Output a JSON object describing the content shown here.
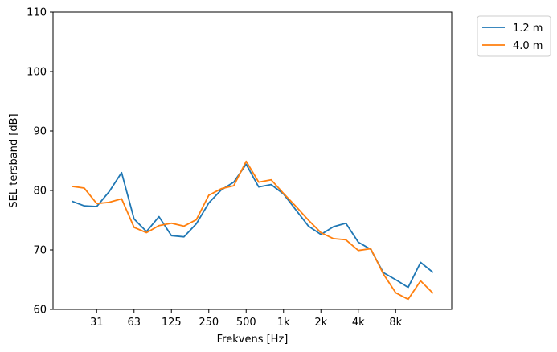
{
  "chart_data": {
    "type": "line",
    "title": "",
    "xlabel": "Frekvens [Hz]",
    "ylabel": "SEL tersband [dB]",
    "ylim": [
      60,
      110
    ],
    "yticks": [
      60,
      70,
      80,
      90,
      100,
      110
    ],
    "xticks": [
      {
        "index": 2,
        "label": "31"
      },
      {
        "index": 5,
        "label": "63"
      },
      {
        "index": 8,
        "label": "125"
      },
      {
        "index": 11,
        "label": "250"
      },
      {
        "index": 14,
        "label": "500"
      },
      {
        "index": 17,
        "label": "1k"
      },
      {
        "index": 20,
        "label": "2k"
      },
      {
        "index": 23,
        "label": "4k"
      },
      {
        "index": 26,
        "label": "8k"
      }
    ],
    "x_index_range": [
      -1.5,
      30.5
    ],
    "grid": false,
    "legend_position": "outside-top-right",
    "series": [
      {
        "name": "1.2 m",
        "color": "#1f77b4",
        "values": [
          78.2,
          77.4,
          77.3,
          79.8,
          83.0,
          75.2,
          73.1,
          75.6,
          72.4,
          72.2,
          74.4,
          77.9,
          80.1,
          81.4,
          84.4,
          80.6,
          81.0,
          79.4,
          76.7,
          74.0,
          72.6,
          73.9,
          74.5,
          71.3,
          70.1,
          66.2,
          65.0,
          63.7,
          67.9,
          66.2
        ]
      },
      {
        "name": "4.0 m",
        "color": "#ff7f0e",
        "values": [
          80.7,
          80.4,
          77.8,
          78.0,
          78.6,
          73.8,
          72.9,
          74.1,
          74.5,
          74.0,
          75.1,
          79.2,
          80.3,
          80.8,
          84.9,
          81.4,
          81.8,
          79.5,
          77.3,
          75.0,
          72.9,
          71.9,
          71.7,
          69.9,
          70.2,
          66.0,
          62.8,
          61.7,
          64.8,
          62.7
        ]
      }
    ]
  }
}
